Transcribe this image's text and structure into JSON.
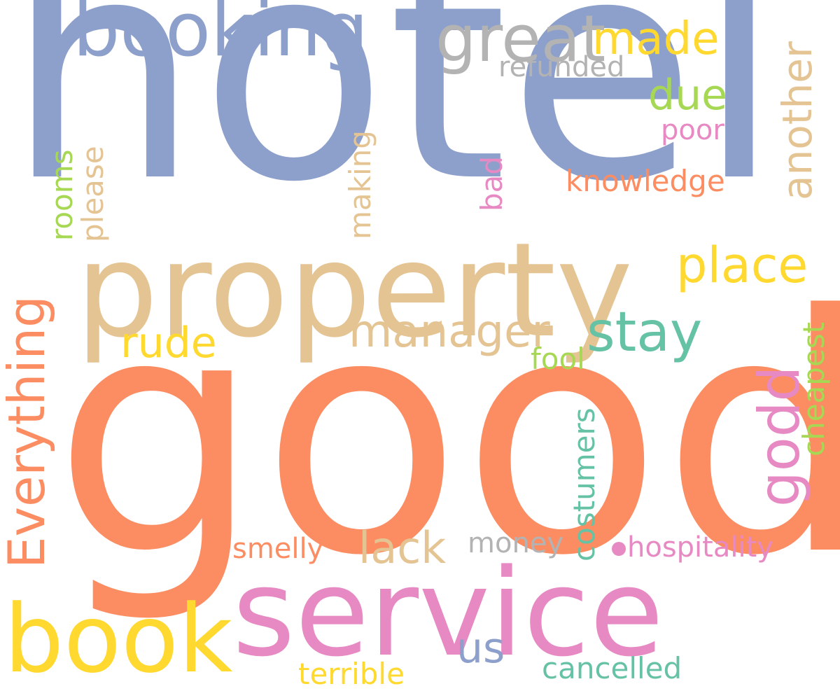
{
  "cloud": {
    "words": {
      "hotel": "hotel",
      "good": "good",
      "property": "property",
      "service": "service",
      "booking": "booking",
      "book": "book",
      "great": "great",
      "made": "made",
      "refunded": "refunded",
      "due": "due",
      "another": "another",
      "poor": "poor",
      "knowledge": "knowledge",
      "bad": "bad",
      "making": "making",
      "please": "please",
      "rooms": "rooms",
      "everything": "Everything",
      "place": "place",
      "stay": "stay",
      "manager": "manager",
      "rude": "rude",
      "fool": "fool",
      "godd": "godd",
      "cheapest": "cheapest",
      "costumers": "costumers",
      "lack": "lack",
      "money": "money",
      "smelly": "smelly",
      "hospitality": "hospitality",
      "us": "us",
      "cancelled": "cancelled",
      "terrible": "terrible"
    },
    "colors": {
      "blue": "#8da0cb",
      "orange": "#fc8d62",
      "tan": "#e5c494",
      "pink": "#e78ac3",
      "yellow": "#ffd92f",
      "green": "#a6d854",
      "teal": "#66c2a5",
      "gray": "#b3b3b3"
    }
  }
}
